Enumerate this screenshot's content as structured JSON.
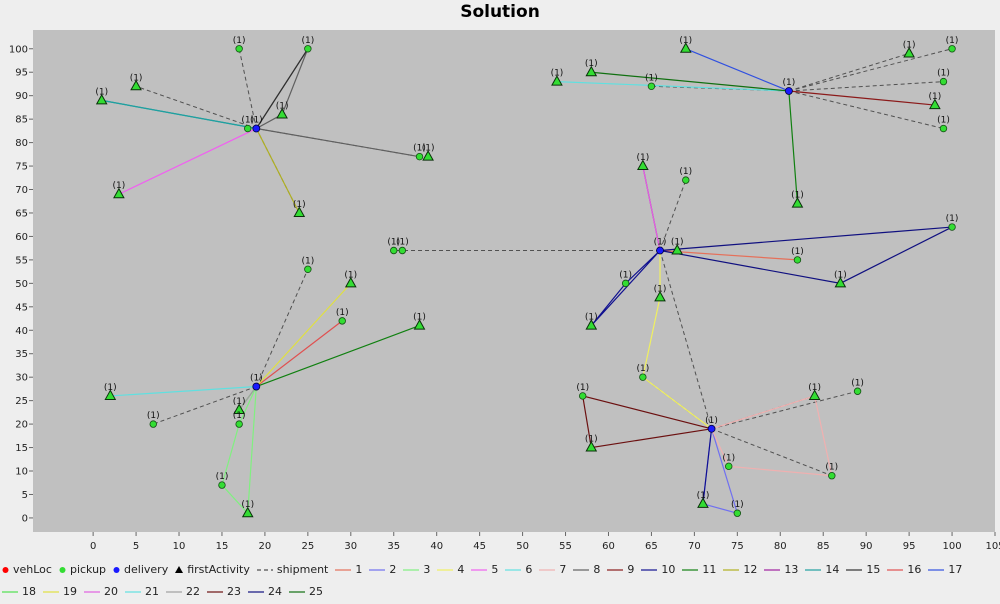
{
  "chart_data": {
    "type": "scatter",
    "title": "Solution",
    "xlabel": "",
    "ylabel": "",
    "xlim": [
      -7,
      105
    ],
    "ylim": [
      -3,
      104
    ],
    "x_ticks": [
      "0",
      "5",
      "10",
      "15",
      "20",
      "25",
      "30",
      "35",
      "40",
      "45",
      "50",
      "55",
      "60",
      "65",
      "70",
      "75",
      "80",
      "85",
      "90",
      "95",
      "100",
      "105"
    ],
    "y_ticks": [
      "0",
      "5",
      "10",
      "15",
      "20",
      "25",
      "30",
      "35",
      "40",
      "45",
      "50",
      "55",
      "60",
      "65",
      "70",
      "75",
      "80",
      "85",
      "90",
      "95",
      "100"
    ],
    "plot_background": "#c0c0c0",
    "legend_position": "bottom",
    "point_label": "(1)",
    "colors": {
      "vehLoc": "#ff0000",
      "pickup": "#33dd33",
      "delivery": "#1a1aff",
      "firstActivity": "#33dd33",
      "shipment": "#505050",
      "route_palette": [
        "#e5705a",
        "#7070f0",
        "#80f080",
        "#f0f060",
        "#f060f0",
        "#60e0e0",
        "#f0b0b0",
        "#606060",
        "#8b1a1a",
        "#101090",
        "#108010",
        "#b0b020",
        "#a020a0",
        "#20a0a0",
        "#303030",
        "#e05050",
        "#3050e0",
        "#50e050",
        "#e0e040",
        "#e060e0",
        "#60e0e0",
        "#a0a0a0",
        "#6b1010",
        "#101080",
        "#107010"
      ]
    },
    "legend": [
      {
        "label": "vehLoc",
        "kind": "dot",
        "color": "#ff0000"
      },
      {
        "label": "pickup",
        "kind": "dot",
        "color": "#33dd33"
      },
      {
        "label": "delivery",
        "kind": "dot",
        "color": "#1a1aff"
      },
      {
        "label": "firstActivity",
        "kind": "triangle",
        "color": "#000000"
      },
      {
        "label": "shipment",
        "kind": "dash",
        "color": "#505050"
      },
      {
        "label": "1",
        "kind": "line",
        "color": "#e5705a"
      },
      {
        "label": "2",
        "kind": "line",
        "color": "#7070f0"
      },
      {
        "label": "3",
        "kind": "line",
        "color": "#80f080"
      },
      {
        "label": "4",
        "kind": "line",
        "color": "#f0f060"
      },
      {
        "label": "5",
        "kind": "line",
        "color": "#f060f0"
      },
      {
        "label": "6",
        "kind": "line",
        "color": "#60e0e0"
      },
      {
        "label": "7",
        "kind": "line",
        "color": "#f0b0b0"
      },
      {
        "label": "8",
        "kind": "line",
        "color": "#606060"
      },
      {
        "label": "9",
        "kind": "line",
        "color": "#8b1a1a"
      },
      {
        "label": "10",
        "kind": "line",
        "color": "#101090"
      },
      {
        "label": "11",
        "kind": "line",
        "color": "#108010"
      },
      {
        "label": "12",
        "kind": "line",
        "color": "#b0b020"
      },
      {
        "label": "13",
        "kind": "line",
        "color": "#a020a0"
      },
      {
        "label": "14",
        "kind": "line",
        "color": "#20a0a0"
      },
      {
        "label": "15",
        "kind": "line",
        "color": "#303030"
      },
      {
        "label": "16",
        "kind": "line",
        "color": "#e05050"
      },
      {
        "label": "17",
        "kind": "line",
        "color": "#3050e0"
      },
      {
        "label": "18",
        "kind": "line",
        "color": "#50e050"
      },
      {
        "label": "19",
        "kind": "line",
        "color": "#e0e040"
      },
      {
        "label": "20",
        "kind": "line",
        "color": "#e060e0"
      },
      {
        "label": "21",
        "kind": "line",
        "color": "#60e0e0"
      },
      {
        "label": "22",
        "kind": "line",
        "color": "#a0a0a0"
      },
      {
        "label": "23",
        "kind": "line",
        "color": "#6b1010"
      },
      {
        "label": "24",
        "kind": "line",
        "color": "#101080"
      },
      {
        "label": "25",
        "kind": "line",
        "color": "#107010"
      }
    ],
    "depots": [
      {
        "x": 19,
        "y": 83
      },
      {
        "x": 81,
        "y": 91
      },
      {
        "x": 66,
        "y": 57
      },
      {
        "x": 19,
        "y": 28
      },
      {
        "x": 72,
        "y": 19
      }
    ],
    "pickups": [
      {
        "x": 17,
        "y": 100
      },
      {
        "x": 18,
        "y": 83
      },
      {
        "x": 38,
        "y": 77
      },
      {
        "x": 65,
        "y": 92
      },
      {
        "x": 100,
        "y": 100
      },
      {
        "x": 99,
        "y": 93
      },
      {
        "x": 99,
        "y": 83
      },
      {
        "x": 69,
        "y": 72
      },
      {
        "x": 62,
        "y": 50
      },
      {
        "x": 82,
        "y": 55
      },
      {
        "x": 35,
        "y": 57
      },
      {
        "x": 36,
        "y": 57
      },
      {
        "x": 100,
        "y": 62
      },
      {
        "x": 25,
        "y": 53
      },
      {
        "x": 29,
        "y": 42
      },
      {
        "x": 7,
        "y": 20
      },
      {
        "x": 17,
        "y": 20
      },
      {
        "x": 15,
        "y": 7
      },
      {
        "x": 64,
        "y": 30
      },
      {
        "x": 57,
        "y": 26
      },
      {
        "x": 89,
        "y": 27
      },
      {
        "x": 74,
        "y": 11
      },
      {
        "x": 86,
        "y": 9
      },
      {
        "x": 75,
        "y": 1
      },
      {
        "x": 25,
        "y": 100
      }
    ],
    "first_activities": [
      {
        "x": 5,
        "y": 92
      },
      {
        "x": 1,
        "y": 89
      },
      {
        "x": 22,
        "y": 86
      },
      {
        "x": 39,
        "y": 77
      },
      {
        "x": 3,
        "y": 69
      },
      {
        "x": 24,
        "y": 65
      },
      {
        "x": 58,
        "y": 95
      },
      {
        "x": 54,
        "y": 93
      },
      {
        "x": 69,
        "y": 100
      },
      {
        "x": 95,
        "y": 99
      },
      {
        "x": 98,
        "y": 88
      },
      {
        "x": 82,
        "y": 67
      },
      {
        "x": 64,
        "y": 75
      },
      {
        "x": 68,
        "y": 57
      },
      {
        "x": 58,
        "y": 41
      },
      {
        "x": 66,
        "y": 47
      },
      {
        "x": 87,
        "y": 50
      },
      {
        "x": 30,
        "y": 50
      },
      {
        "x": 38,
        "y": 41
      },
      {
        "x": 2,
        "y": 26
      },
      {
        "x": 17,
        "y": 23
      },
      {
        "x": 18,
        "y": 1
      },
      {
        "x": 58,
        "y": 15
      },
      {
        "x": 84,
        "y": 26
      },
      {
        "x": 71,
        "y": 3
      }
    ],
    "shipments": [
      [
        19,
        83,
        17,
        100
      ],
      [
        19,
        83,
        5,
        92
      ],
      [
        19,
        83,
        25,
        100
      ],
      [
        19,
        83,
        38,
        77
      ],
      [
        19,
        83,
        24,
        65
      ],
      [
        81,
        91,
        95,
        99
      ],
      [
        81,
        91,
        100,
        100
      ],
      [
        81,
        91,
        99,
        93
      ],
      [
        81,
        91,
        99,
        83
      ],
      [
        81,
        91,
        65,
        92
      ],
      [
        66,
        57,
        69,
        72
      ],
      [
        66,
        57,
        35,
        57
      ],
      [
        66,
        57,
        72,
        19
      ],
      [
        19,
        28,
        25,
        53
      ],
      [
        19,
        28,
        7,
        20
      ],
      [
        72,
        19,
        86,
        9
      ],
      [
        72,
        19,
        89,
        27
      ],
      [
        72,
        19,
        84,
        26
      ],
      [
        72,
        19,
        64,
        30
      ]
    ],
    "routes": [
      {
        "name": "1",
        "color": "#e5705a",
        "points": [
          [
            66,
            57
          ],
          [
            82,
            55
          ],
          [
            66,
            57
          ]
        ]
      },
      {
        "name": "2",
        "color": "#7070f0",
        "points": [
          [
            72,
            19
          ],
          [
            71,
            3
          ],
          [
            75,
            1
          ],
          [
            72,
            19
          ]
        ]
      },
      {
        "name": "3",
        "color": "#80f080",
        "points": [
          [
            19,
            28
          ],
          [
            17,
            20
          ],
          [
            15,
            7
          ],
          [
            18,
            1
          ],
          [
            19,
            28
          ]
        ]
      },
      {
        "name": "4",
        "color": "#f0f060",
        "points": [
          [
            66,
            57
          ],
          [
            66,
            47
          ],
          [
            64,
            30
          ],
          [
            72,
            19
          ]
        ]
      },
      {
        "name": "5",
        "color": "#f060f0",
        "points": [
          [
            19,
            83
          ],
          [
            3,
            69
          ]
        ]
      },
      {
        "name": "6",
        "color": "#60e0e0",
        "points": [
          [
            81,
            91
          ],
          [
            54,
            93
          ],
          [
            81,
            91
          ]
        ]
      },
      {
        "name": "7",
        "color": "#f0b0b0",
        "points": [
          [
            72,
            19
          ],
          [
            74,
            11
          ],
          [
            86,
            9
          ],
          [
            84,
            26
          ],
          [
            72,
            19
          ]
        ]
      },
      {
        "name": "8",
        "color": "#606060",
        "points": [
          [
            19,
            83
          ],
          [
            22,
            86
          ],
          [
            25,
            100
          ],
          [
            19,
            83
          ]
        ]
      },
      {
        "name": "9",
        "color": "#8b1a1a",
        "points": [
          [
            81,
            91
          ],
          [
            98,
            88
          ],
          [
            81,
            91
          ]
        ]
      },
      {
        "name": "10",
        "color": "#101090",
        "points": [
          [
            66,
            57
          ],
          [
            62,
            50
          ],
          [
            58,
            41
          ],
          [
            66,
            57
          ]
        ]
      },
      {
        "name": "11",
        "color": "#108010",
        "points": [
          [
            81,
            91
          ],
          [
            82,
            67
          ],
          [
            81,
            91
          ]
        ]
      },
      {
        "name": "12",
        "color": "#b0b020",
        "points": [
          [
            19,
            83
          ],
          [
            24,
            65
          ],
          [
            19,
            83
          ]
        ]
      },
      {
        "name": "13",
        "color": "#a020a0",
        "points": [
          [
            66,
            57
          ],
          [
            64,
            75
          ]
        ]
      },
      {
        "name": "14",
        "color": "#20a0a0",
        "points": [
          [
            19,
            83
          ],
          [
            1,
            89
          ]
        ]
      },
      {
        "name": "15",
        "color": "#303030",
        "points": [
          [
            19,
            83
          ],
          [
            25,
            100
          ],
          [
            19,
            83
          ]
        ]
      },
      {
        "name": "16",
        "color": "#e05050",
        "points": [
          [
            19,
            28
          ],
          [
            29,
            42
          ],
          [
            19,
            28
          ]
        ]
      },
      {
        "name": "17",
        "color": "#3050e0",
        "points": [
          [
            81,
            91
          ],
          [
            69,
            100
          ],
          [
            81,
            91
          ]
        ]
      },
      {
        "name": "18",
        "color": "#50e050",
        "points": [
          [
            19,
            28
          ],
          [
            17,
            23
          ],
          [
            19,
            28
          ]
        ]
      },
      {
        "name": "19",
        "color": "#e0e040",
        "points": [
          [
            19,
            28
          ],
          [
            30,
            50
          ],
          [
            19,
            28
          ]
        ]
      },
      {
        "name": "20",
        "color": "#e060e0",
        "points": [
          [
            66,
            57
          ],
          [
            64,
            75
          ]
        ]
      },
      {
        "name": "21",
        "color": "#60e0e0",
        "points": [
          [
            19,
            28
          ],
          [
            2,
            26
          ],
          [
            19,
            28
          ]
        ]
      },
      {
        "name": "22",
        "color": "#a0a0a0",
        "points": [
          [
            19,
            28
          ],
          [
            17,
            23
          ],
          [
            19,
            28
          ]
        ]
      },
      {
        "name": "23",
        "color": "#6b1010",
        "points": [
          [
            72,
            19
          ],
          [
            57,
            26
          ],
          [
            58,
            15
          ],
          [
            72,
            19
          ]
        ]
      },
      {
        "name": "24",
        "color": "#101080",
        "points": [
          [
            66,
            57
          ],
          [
            100,
            62
          ],
          [
            87,
            50
          ],
          [
            66,
            57
          ]
        ]
      },
      {
        "name": "25",
        "color": "#107010",
        "points": [
          [
            81,
            91
          ],
          [
            58,
            95
          ],
          [
            81,
            91
          ]
        ]
      }
    ],
    "extra_routes": [
      {
        "color": "#108010",
        "points": [
          [
            19,
            28
          ],
          [
            38,
            41
          ],
          [
            19,
            28
          ]
        ]
      },
      {
        "color": "#20a0a0",
        "points": [
          [
            19,
            83
          ],
          [
            1,
            89
          ],
          [
            19,
            83
          ]
        ]
      },
      {
        "color": "#606060",
        "points": [
          [
            19,
            83
          ],
          [
            38,
            77
          ],
          [
            19,
            83
          ]
        ]
      },
      {
        "color": "#101090",
        "points": [
          [
            72,
            19
          ],
          [
            71,
            3
          ],
          [
            72,
            19
          ]
        ]
      }
    ]
  }
}
